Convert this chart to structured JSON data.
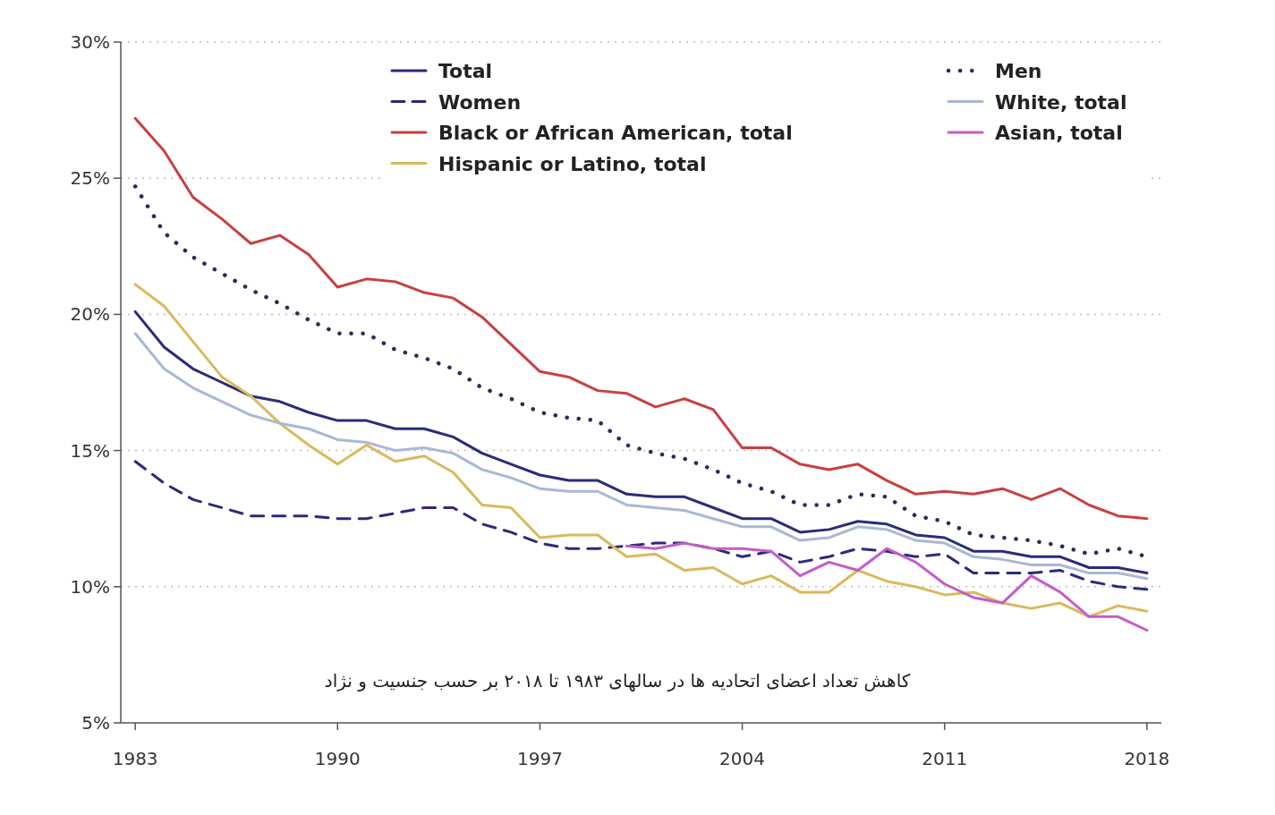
{
  "chart_data": {
    "type": "line",
    "x": [
      1983,
      1984,
      1985,
      1986,
      1987,
      1988,
      1989,
      1990,
      1991,
      1992,
      1993,
      1994,
      1995,
      1996,
      1997,
      1998,
      1999,
      2000,
      2001,
      2002,
      2003,
      2004,
      2005,
      2006,
      2007,
      2008,
      2009,
      2010,
      2011,
      2012,
      2013,
      2014,
      2015,
      2016,
      2017,
      2018
    ],
    "xlim": [
      1982.5,
      2018.5
    ],
    "xticks": [
      1983,
      1990,
      1997,
      2004,
      2011,
      2018
    ],
    "ylim": [
      5,
      30
    ],
    "yticks": [
      {
        "value": 5,
        "label": "5%"
      },
      {
        "value": 10,
        "label": "10%"
      },
      {
        "value": 15,
        "label": "15%"
      },
      {
        "value": 20,
        "label": "20%"
      },
      {
        "value": 25,
        "label": "25%"
      },
      {
        "value": 30,
        "label": "30%"
      }
    ],
    "grid": "y",
    "legend": "top",
    "marker": "none",
    "annotations": [
      "کاهش تعداد اعضای اتحادیه ها در سالهای ۱۹۸۳ تا ۲۰۱۸ بر حسب جنسیت و نژاد"
    ],
    "series": [
      {
        "name": "Total",
        "color": "#2b2a7c",
        "line_style": "solid",
        "values": [
          20.1,
          18.8,
          18.0,
          17.5,
          17.0,
          16.8,
          16.4,
          16.1,
          16.1,
          15.8,
          15.8,
          15.5,
          14.9,
          14.5,
          14.1,
          13.9,
          13.9,
          13.4,
          13.3,
          13.3,
          12.9,
          12.5,
          12.5,
          12.0,
          12.1,
          12.4,
          12.3,
          11.9,
          11.8,
          11.3,
          11.3,
          11.1,
          11.1,
          10.7,
          10.7,
          10.5
        ]
      },
      {
        "name": "Women",
        "color": "#2b2a7c",
        "line_style": "dashed",
        "values": [
          14.6,
          13.8,
          13.2,
          12.9,
          12.6,
          12.6,
          12.6,
          12.5,
          12.5,
          12.7,
          12.9,
          12.9,
          12.3,
          12.0,
          11.6,
          11.4,
          11.4,
          11.5,
          11.6,
          11.6,
          11.4,
          11.1,
          11.3,
          10.9,
          11.1,
          11.4,
          11.3,
          11.1,
          11.2,
          10.5,
          10.5,
          10.5,
          10.6,
          10.2,
          10.0,
          9.9
        ]
      },
      {
        "name": "Black or African American, total",
        "color": "#c8403f",
        "line_style": "solid",
        "values": [
          27.2,
          26.0,
          24.3,
          23.5,
          22.6,
          22.9,
          22.2,
          21.0,
          21.3,
          21.2,
          20.8,
          20.6,
          19.9,
          18.9,
          17.9,
          17.7,
          17.2,
          17.1,
          16.6,
          16.9,
          16.5,
          15.1,
          15.1,
          14.5,
          14.3,
          14.5,
          13.9,
          13.4,
          13.5,
          13.4,
          13.6,
          13.2,
          13.6,
          13.0,
          12.6,
          12.5
        ]
      },
      {
        "name": "Hispanic or Latino, total",
        "color": "#d9b95c",
        "line_style": "solid",
        "values": [
          21.1,
          20.3,
          19.0,
          17.7,
          17.0,
          16.0,
          15.2,
          14.5,
          15.2,
          14.6,
          14.8,
          14.2,
          13.0,
          12.9,
          11.8,
          11.9,
          11.9,
          11.1,
          11.2,
          10.6,
          10.7,
          10.1,
          10.4,
          9.8,
          9.8,
          10.6,
          10.2,
          10.0,
          9.7,
          9.8,
          9.4,
          9.2,
          9.4,
          8.9,
          9.3,
          9.1
        ]
      },
      {
        "name": "Men",
        "color": "#2a2a5a",
        "line_style": "dotted",
        "values": [
          24.7,
          23.0,
          22.1,
          21.5,
          20.9,
          20.4,
          19.8,
          19.3,
          19.3,
          18.7,
          18.4,
          18.0,
          17.3,
          16.9,
          16.4,
          16.2,
          16.1,
          15.2,
          14.9,
          14.7,
          14.3,
          13.8,
          13.5,
          13.0,
          13.0,
          13.4,
          13.3,
          12.6,
          12.4,
          11.9,
          11.8,
          11.7,
          11.5,
          11.2,
          11.4,
          11.1
        ]
      },
      {
        "name": "White, total",
        "color": "#a9b8d4",
        "line_style": "solid",
        "values": [
          19.3,
          18.0,
          17.3,
          16.8,
          16.3,
          16.0,
          15.8,
          15.4,
          15.3,
          15.0,
          15.1,
          14.9,
          14.3,
          14.0,
          13.6,
          13.5,
          13.5,
          13.0,
          12.9,
          12.8,
          12.5,
          12.2,
          12.2,
          11.7,
          11.8,
          12.2,
          12.1,
          11.7,
          11.6,
          11.1,
          11.0,
          10.8,
          10.8,
          10.5,
          10.5,
          10.3
        ]
      },
      {
        "name": "Asian, total",
        "color": "#c45cc8",
        "line_style": "solid",
        "x": [
          2000,
          2001,
          2002,
          2003,
          2004,
          2005,
          2006,
          2007,
          2008,
          2009,
          2010,
          2011,
          2012,
          2013,
          2014,
          2015,
          2016,
          2017,
          2018
        ],
        "values": [
          11.5,
          11.4,
          11.6,
          11.4,
          11.4,
          11.3,
          10.4,
          10.9,
          10.6,
          11.4,
          10.9,
          10.1,
          9.6,
          9.4,
          10.4,
          9.8,
          8.9,
          8.9,
          8.4
        ]
      }
    ]
  }
}
